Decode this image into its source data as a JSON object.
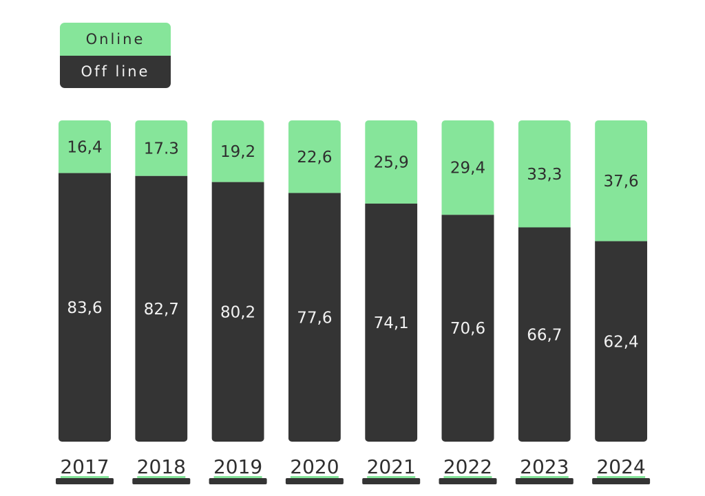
{
  "legend": {
    "online_label": "Online",
    "offline_label": "Off line"
  },
  "colors": {
    "online": "#86e59a",
    "offline": "#343434",
    "online_text": "#2e2e2e",
    "offline_text": "#f2f2f2",
    "year_text": "#2e2e2e",
    "base_marker": "#343434",
    "base_accent": "#86e59a"
  },
  "chart_data": {
    "type": "bar",
    "stacked": true,
    "categories": [
      "2017",
      "2018",
      "2019",
      "2020",
      "2021",
      "2022",
      "2023",
      "2024"
    ],
    "series": [
      {
        "name": "Online",
        "values": [
          16.4,
          17.3,
          19.2,
          22.6,
          25.9,
          29.4,
          33.3,
          37.6
        ],
        "labels": [
          "16,4",
          "17.3",
          "19,2",
          "22,6",
          "25,9",
          "29,4",
          "33,3",
          "37,6"
        ]
      },
      {
        "name": "Off line",
        "values": [
          83.6,
          82.7,
          80.2,
          77.6,
          74.1,
          70.6,
          66.7,
          62.4
        ],
        "labels": [
          "83,6",
          "82,7",
          "80,2",
          "77,6",
          "74,1",
          "70,6",
          "66,7",
          "62,4"
        ]
      }
    ],
    "ylim": [
      0,
      100
    ],
    "grid": false,
    "legend_position": "top-left"
  }
}
